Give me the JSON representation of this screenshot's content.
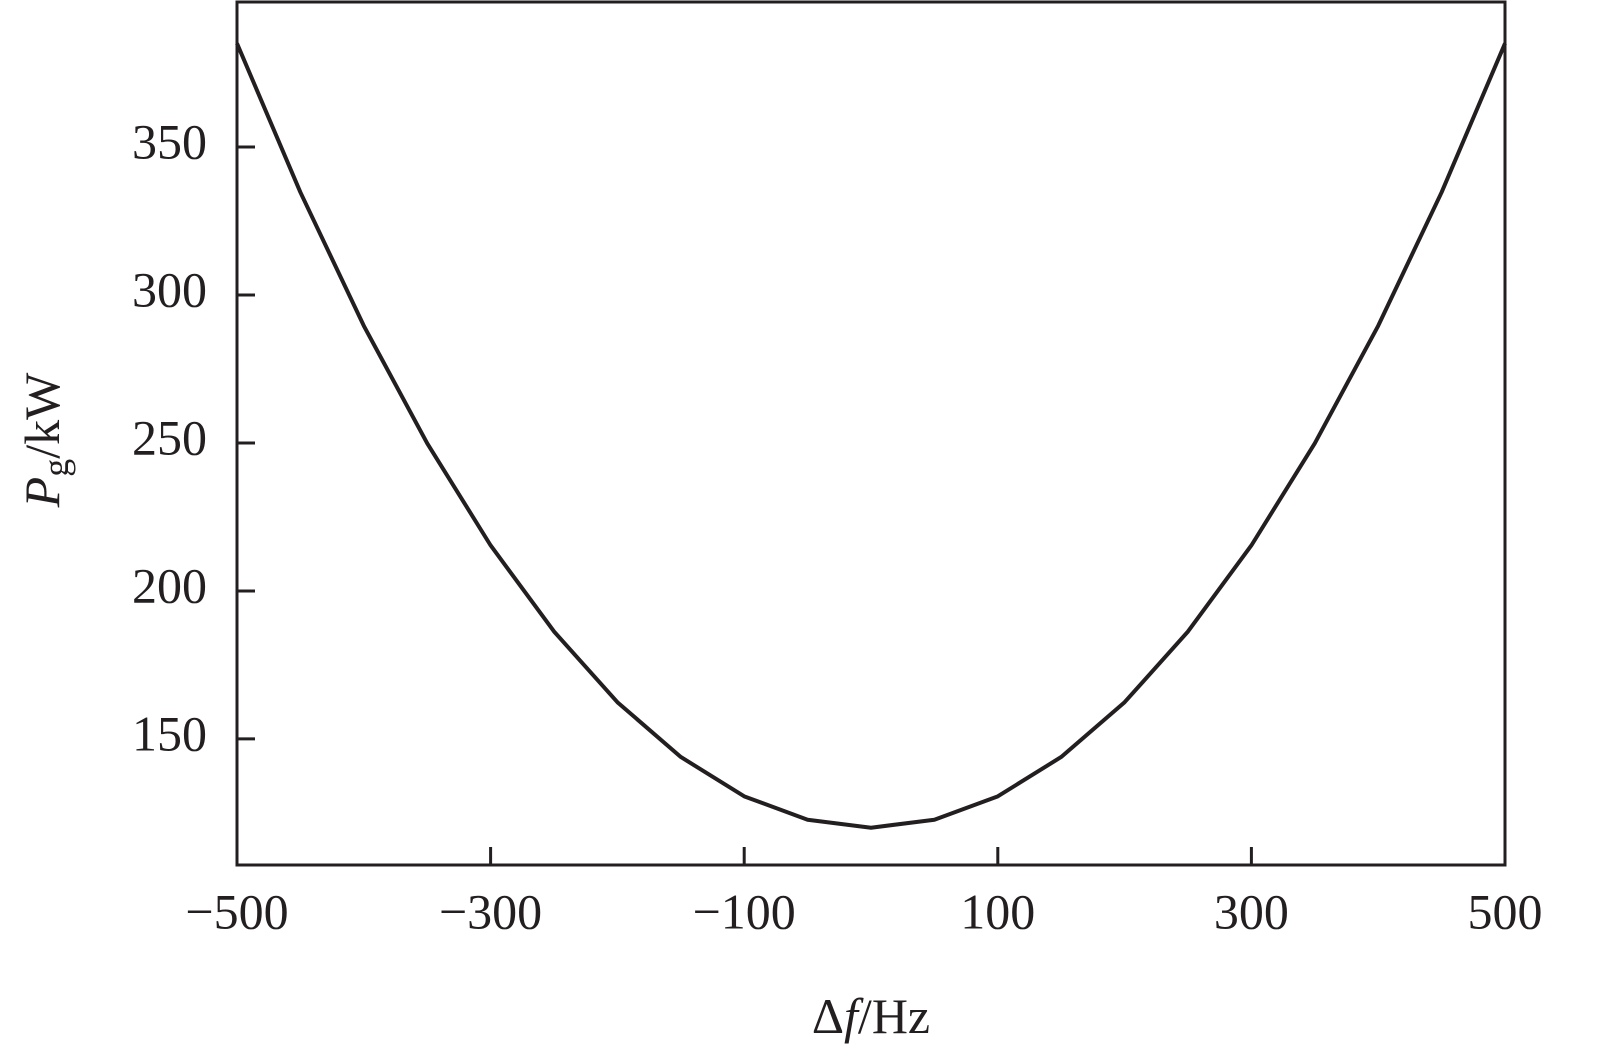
{
  "chart_data": {
    "type": "line",
    "x_label": [
      "Δ",
      "f",
      "/Hz"
    ],
    "y_label": [
      "P",
      "g",
      "/kW"
    ],
    "x": [
      -500,
      -450,
      -400,
      -350,
      -300,
      -250,
      -200,
      -150,
      -100,
      -50,
      0,
      50,
      100,
      150,
      200,
      250,
      300,
      350,
      400,
      450,
      500
    ],
    "series": [
      {
        "color": "#231f20",
        "values": [
          385,
          334.7,
          289.6,
          249.9,
          215.4,
          186.3,
          162.4,
          143.9,
          130.6,
          122.7,
          120,
          122.7,
          130.6,
          143.9,
          162.4,
          186.3,
          215.4,
          249.9,
          289.6,
          334.7,
          385
        ]
      }
    ],
    "xlim": [
      -500,
      500
    ],
    "xticks": [
      {
        "value": -500,
        "label": "−500"
      },
      {
        "value": -300,
        "label": "−300"
      },
      {
        "value": -100,
        "label": "−100"
      },
      100,
      300,
      500
    ],
    "ylim": [
      107.4,
      399
    ],
    "yticks": [
      150,
      200,
      250,
      300,
      350
    ],
    "grid": false
  }
}
